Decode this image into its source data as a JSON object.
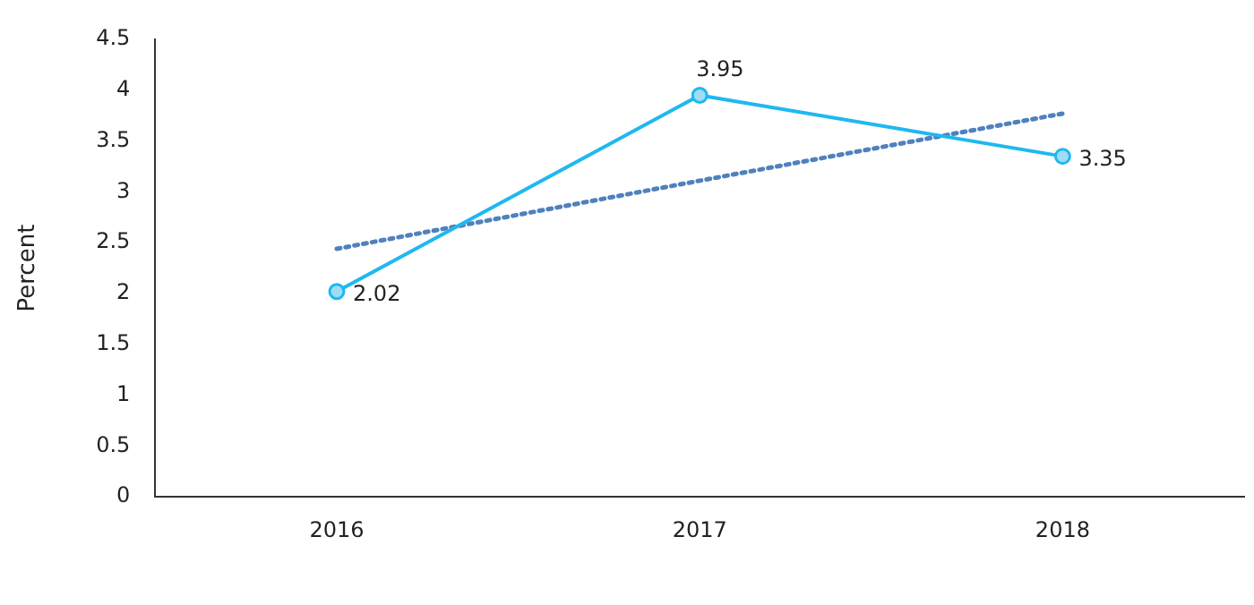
{
  "chart_data": {
    "type": "line",
    "ylabel": "Percent",
    "categories": [
      "2016",
      "2017",
      "2018"
    ],
    "series": [
      {
        "color": "#1fb8f0",
        "values": [
          2.02,
          3.95,
          3.35
        ],
        "value_labels": [
          "2.02",
          "3.95",
          "3.35"
        ],
        "marker": "circle",
        "line_style": "solid"
      },
      {
        "color": "#4f81bd",
        "values": [
          2.44,
          3.11,
          3.77
        ],
        "marker": "none",
        "line_style": "dotted"
      }
    ],
    "ylim": [
      0,
      4.5
    ],
    "yticks": [
      0,
      0.5,
      1,
      1.5,
      2,
      2.5,
      3,
      3.5,
      4,
      4.5
    ],
    "grid": false,
    "legend": false
  }
}
